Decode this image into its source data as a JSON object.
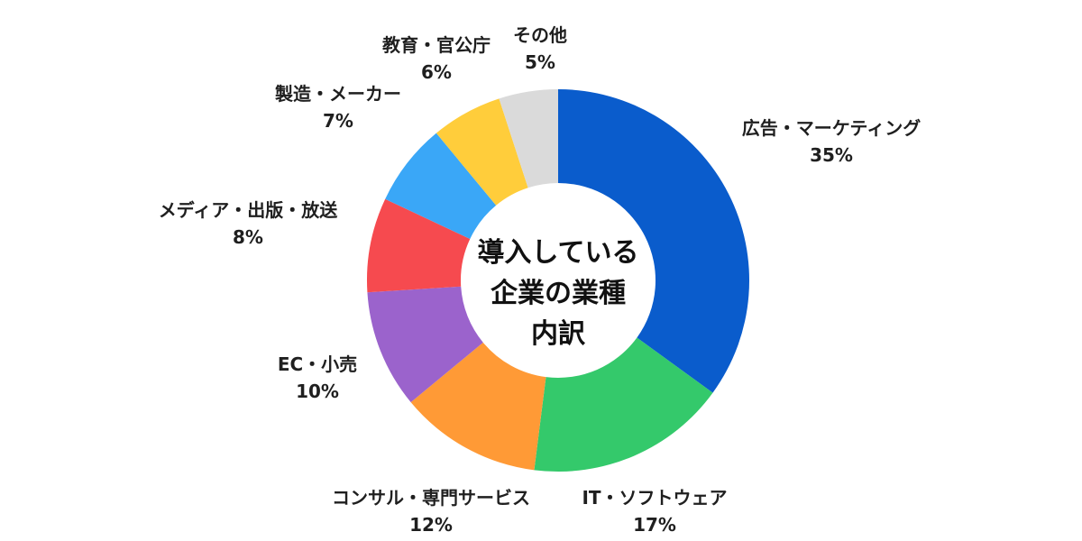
{
  "chart_data": {
    "type": "pie",
    "donut": true,
    "title_lines": [
      "導入している",
      "企業の業種",
      "内訳"
    ],
    "categories": [
      "広告・マーケティング",
      "IT・ソフトウェア",
      "コンサル・専門サービス",
      "EC・小売",
      "メディア・出版・放送",
      "製造・メーカー",
      "教育・官公庁",
      "その他"
    ],
    "values": [
      35,
      17,
      12,
      10,
      8,
      7,
      6,
      5
    ],
    "value_labels": [
      "35%",
      "17%",
      "12%",
      "10%",
      "8%",
      "7%",
      "6%",
      "5%"
    ],
    "colors": [
      "#0a5ccc",
      "#34c96b",
      "#ff9a36",
      "#9b63cc",
      "#f64a4f",
      "#3aa7f7",
      "#ffcd3b",
      "#dadada"
    ],
    "unit": "%",
    "start_angle_deg": 0,
    "direction": "clockwise"
  }
}
